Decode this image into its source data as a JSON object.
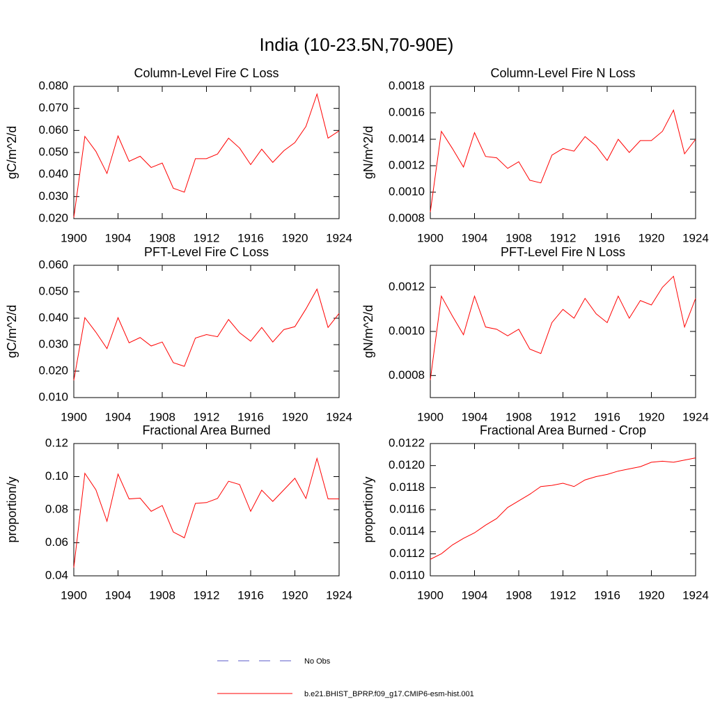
{
  "title": "India (10-23.5N,70-90E)",
  "legend": [
    {
      "name": "No Obs",
      "color": "#5a5ac8",
      "dash": true
    },
    {
      "name": "b.e21.BHIST_BPRP.f09_g17.CMIP6-esm-hist.001",
      "color": "#ff0000",
      "dash": false
    }
  ],
  "chart_data": [
    {
      "type": "line",
      "title": "Column-Level Fire C Loss",
      "y_label": "gC/m^2/d",
      "x": [
        1900,
        1901,
        1902,
        1903,
        1904,
        1905,
        1906,
        1907,
        1908,
        1909,
        1910,
        1911,
        1912,
        1913,
        1914,
        1915,
        1916,
        1917,
        1918,
        1919,
        1920,
        1921,
        1922,
        1923,
        1924
      ],
      "series": [
        {
          "color": "#ff0000",
          "values": [
            0.0205,
            0.0573,
            0.0505,
            0.0405,
            0.0575,
            0.046,
            0.0483,
            0.0432,
            0.0452,
            0.0338,
            0.032,
            0.0472,
            0.0472,
            0.0493,
            0.0565,
            0.052,
            0.0445,
            0.0515,
            0.0455,
            0.0508,
            0.0545,
            0.0618,
            0.0765,
            0.0565,
            0.0598
          ]
        }
      ],
      "xlim": [
        1900,
        1924
      ],
      "xticks": [
        1900,
        1904,
        1908,
        1912,
        1916,
        1920,
        1924
      ],
      "ylim": [
        0.02,
        0.08
      ],
      "yticks": [
        {
          "value": 0.02,
          "label": "0.020"
        },
        {
          "value": 0.03,
          "label": "0.030"
        },
        {
          "value": 0.04,
          "label": "0.040"
        },
        {
          "value": 0.05,
          "label": "0.050"
        },
        {
          "value": 0.06,
          "label": "0.060"
        },
        {
          "value": 0.07,
          "label": "0.070"
        },
        {
          "value": 0.08,
          "label": "0.080"
        }
      ]
    },
    {
      "type": "line",
      "title": "Column-Level Fire N Loss",
      "y_label": "gN/m^2/d",
      "x": [
        1900,
        1901,
        1902,
        1903,
        1904,
        1905,
        1906,
        1907,
        1908,
        1909,
        1910,
        1911,
        1912,
        1913,
        1914,
        1915,
        1916,
        1917,
        1918,
        1919,
        1920,
        1921,
        1922,
        1923,
        1924
      ],
      "series": [
        {
          "color": "#ff0000",
          "values": [
            0.00085,
            0.00146,
            0.00133,
            0.00119,
            0.00145,
            0.00127,
            0.00126,
            0.00118,
            0.00123,
            0.00109,
            0.00107,
            0.00128,
            0.00133,
            0.00131,
            0.00142,
            0.00135,
            0.00124,
            0.0014,
            0.0013,
            0.00139,
            0.00139,
            0.00146,
            0.00162,
            0.00129,
            0.0014
          ]
        }
      ],
      "xlim": [
        1900,
        1924
      ],
      "xticks": [
        1900,
        1904,
        1908,
        1912,
        1916,
        1920,
        1924
      ],
      "ylim": [
        0.0008,
        0.0018
      ],
      "yticks": [
        0.0008,
        {
          "value": 0.001,
          "label": "0.0010"
        },
        0.0012,
        0.0014,
        0.0016,
        0.0018
      ]
    },
    {
      "type": "line",
      "title": "PFT-Level Fire C Loss",
      "y_label": "gC/m^2/d",
      "x": [
        1900,
        1901,
        1902,
        1903,
        1904,
        1905,
        1906,
        1907,
        1908,
        1909,
        1910,
        1911,
        1912,
        1913,
        1914,
        1915,
        1916,
        1917,
        1918,
        1919,
        1920,
        1921,
        1922,
        1923,
        1924
      ],
      "series": [
        {
          "color": "#ff0000",
          "values": [
            0.0165,
            0.0402,
            0.0347,
            0.0285,
            0.0402,
            0.0307,
            0.0327,
            0.0295,
            0.031,
            0.0232,
            0.0218,
            0.0325,
            0.0338,
            0.033,
            0.0395,
            0.0345,
            0.0313,
            0.0365,
            0.031,
            0.0357,
            0.0368,
            0.0435,
            0.051,
            0.0365,
            0.0418
          ]
        }
      ],
      "xlim": [
        1900,
        1924
      ],
      "xticks": [
        1900,
        1904,
        1908,
        1912,
        1916,
        1920,
        1924
      ],
      "ylim": [
        0.01,
        0.06
      ],
      "yticks": [
        {
          "value": 0.01,
          "label": "0.010"
        },
        {
          "value": 0.02,
          "label": "0.020"
        },
        {
          "value": 0.03,
          "label": "0.030"
        },
        {
          "value": 0.04,
          "label": "0.040"
        },
        {
          "value": 0.05,
          "label": "0.050"
        },
        {
          "value": 0.06,
          "label": "0.060"
        }
      ]
    },
    {
      "type": "line",
      "title": "PFT-Level Fire N Loss",
      "y_label": "gN/m^2/d",
      "x": [
        1900,
        1901,
        1902,
        1903,
        1904,
        1905,
        1906,
        1907,
        1908,
        1909,
        1910,
        1911,
        1912,
        1913,
        1914,
        1915,
        1916,
        1917,
        1918,
        1919,
        1920,
        1921,
        1922,
        1923,
        1924
      ],
      "series": [
        {
          "color": "#ff0000",
          "values": [
            0.00078,
            0.00116,
            0.00107,
            0.000985,
            0.00116,
            0.00102,
            0.00101,
            0.00098,
            0.00101,
            0.00092,
            0.0009,
            0.00104,
            0.0011,
            0.00106,
            0.00115,
            0.00108,
            0.00104,
            0.00116,
            0.00106,
            0.00114,
            0.00112,
            0.0012,
            0.00125,
            0.00102,
            0.00115
          ]
        }
      ],
      "xlim": [
        1900,
        1924
      ],
      "xticks": [
        1900,
        1904,
        1908,
        1912,
        1916,
        1920,
        1924
      ],
      "ylim": [
        0.0007,
        0.0013
      ],
      "yticks": [
        0.0008,
        {
          "value": 0.001,
          "label": "0.0010"
        },
        0.0012
      ]
    },
    {
      "type": "line",
      "title": "Fractional Area Burned",
      "y_label": "proportion/y",
      "x": [
        1900,
        1901,
        1902,
        1903,
        1904,
        1905,
        1906,
        1907,
        1908,
        1909,
        1910,
        1911,
        1912,
        1913,
        1914,
        1915,
        1916,
        1917,
        1918,
        1919,
        1920,
        1921,
        1922,
        1923,
        1924
      ],
      "series": [
        {
          "color": "#ff0000",
          "values": [
            0.045,
            0.102,
            0.092,
            0.073,
            0.1015,
            0.0865,
            0.087,
            0.079,
            0.0825,
            0.0665,
            0.063,
            0.0838,
            0.0843,
            0.0868,
            0.0972,
            0.0952,
            0.079,
            0.0918,
            0.085,
            0.092,
            0.099,
            0.0868,
            0.111,
            0.0865,
            0.0865
          ]
        }
      ],
      "xlim": [
        1900,
        1924
      ],
      "xticks": [
        1900,
        1904,
        1908,
        1912,
        1916,
        1920,
        1924
      ],
      "ylim": [
        0.04,
        0.12
      ],
      "yticks": [
        0.04,
        0.06,
        0.08,
        {
          "value": 0.1,
          "label": "0.10"
        },
        0.12
      ]
    },
    {
      "type": "line",
      "title": "Fractional Area Burned - Crop",
      "y_label": "proportion/y",
      "x": [
        1900,
        1901,
        1902,
        1903,
        1904,
        1905,
        1906,
        1907,
        1908,
        1909,
        1910,
        1911,
        1912,
        1913,
        1914,
        1915,
        1916,
        1917,
        1918,
        1919,
        1920,
        1921,
        1922,
        1923,
        1924
      ],
      "series": [
        {
          "color": "#ff0000",
          "values": [
            0.01115,
            0.0112,
            0.01128,
            0.01134,
            0.01139,
            0.01146,
            0.01152,
            0.01162,
            0.01168,
            0.01174,
            0.01181,
            0.01182,
            0.01184,
            0.01181,
            0.01187,
            0.0119,
            0.01192,
            0.01195,
            0.01197,
            0.01199,
            0.01203,
            0.01204,
            0.01203,
            0.01205,
            0.01207
          ]
        }
      ],
      "xlim": [
        1900,
        1924
      ],
      "xticks": [
        1900,
        1904,
        1908,
        1912,
        1916,
        1920,
        1924
      ],
      "ylim": [
        0.011,
        0.0122
      ],
      "yticks": [
        {
          "value": 0.011,
          "label": "0.0110"
        },
        0.0112,
        0.0114,
        0.0116,
        0.0118,
        {
          "value": 0.012,
          "label": "0.0120"
        },
        0.0122
      ]
    }
  ]
}
